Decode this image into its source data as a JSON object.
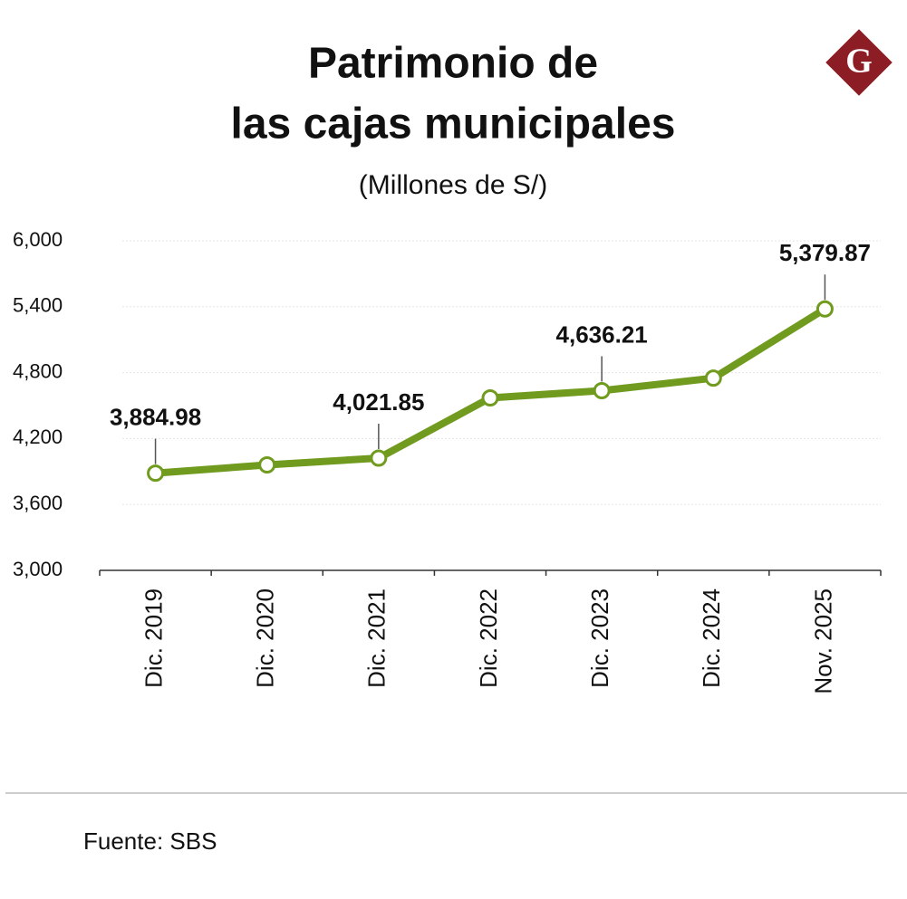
{
  "chart_data": {
    "type": "line",
    "title": [
      "Patrimonio de",
      "las cajas municipales"
    ],
    "subtitle": "(Millones de S/)",
    "logo": "G",
    "source": "Fuente: SBS",
    "categories": [
      "Dic. 2019",
      "Dic. 2020",
      "Dic. 2021",
      "Dic. 2022",
      "Dic. 2023",
      "Dic. 2024",
      "Nov. 2025"
    ],
    "series": [
      {
        "name": "Patrimonio",
        "color": "#709b1f",
        "values": [
          3884.98,
          3960,
          4021.85,
          4570,
          4636.21,
          4750,
          5379.87
        ],
        "value_labels": [
          "3,884.98",
          null,
          "4,021.85",
          null,
          "4,636.21",
          null,
          "5,379.87"
        ]
      }
    ],
    "ylim": [
      3000,
      6000
    ],
    "yticks": [
      {
        "value": 3000,
        "label": "3,000"
      },
      {
        "value": 3600,
        "label": "3,600"
      },
      {
        "value": 4200,
        "label": "4,200"
      },
      {
        "value": 4800,
        "label": "4,800"
      },
      {
        "value": 5400,
        "label": "5,400"
      },
      {
        "value": 6000,
        "label": "6,000"
      }
    ],
    "grid": true
  }
}
